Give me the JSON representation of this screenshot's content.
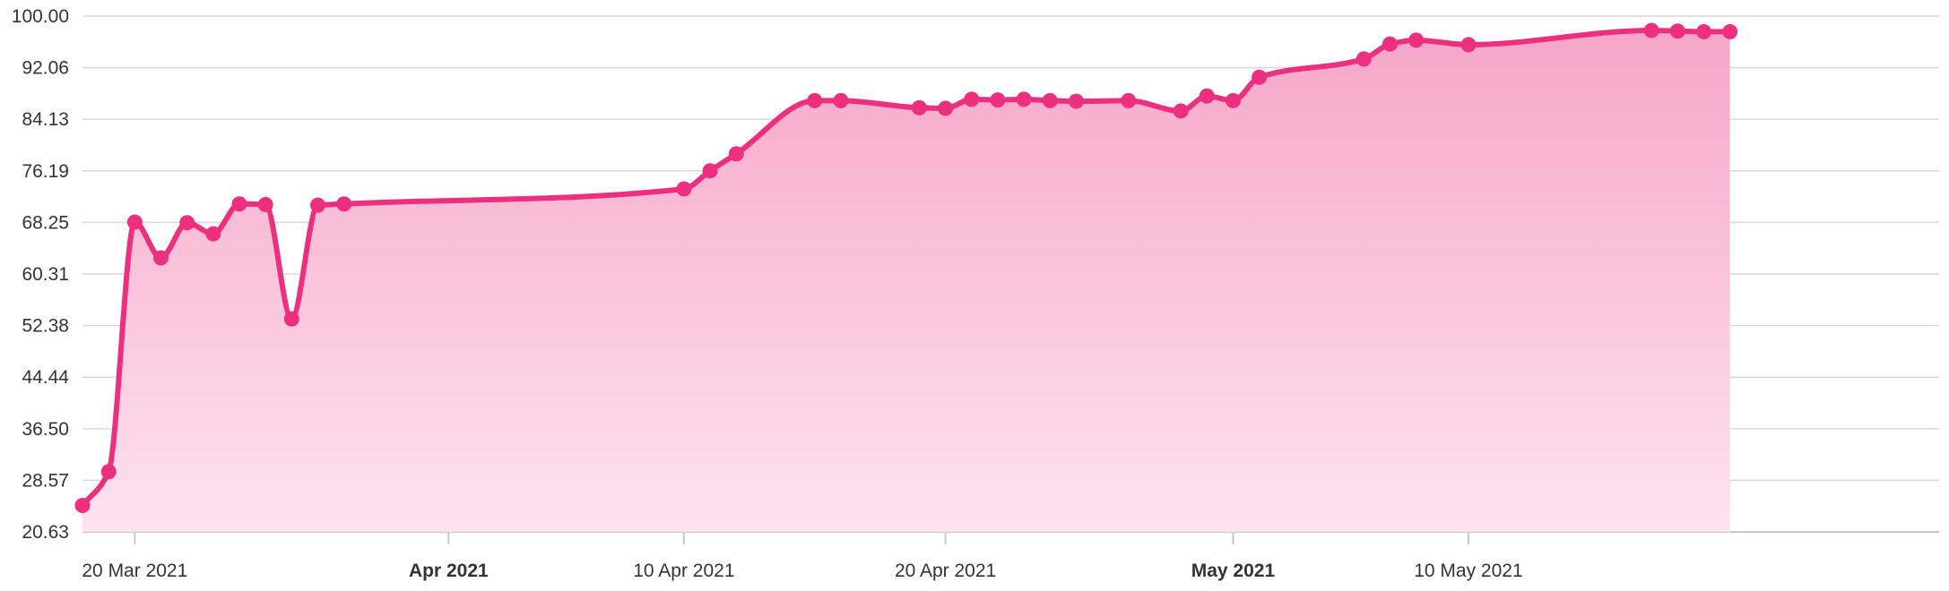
{
  "chart_data": {
    "type": "area",
    "title": "",
    "xlabel": "",
    "ylabel": "",
    "colors": {
      "line": "#ec2f7f",
      "area_top": "#f6a6c8",
      "area_bottom": "#fde3ee",
      "grid": "#d9d9d9"
    },
    "grid": true,
    "legend": "none",
    "ylim": [
      20.63,
      100.0
    ],
    "xlim": [
      "2021-03-18",
      "2021-05-28"
    ],
    "yticks": [
      "100.00",
      "92.06",
      "84.13",
      "76.19",
      "68.25",
      "60.31",
      "52.38",
      "44.44",
      "36.50",
      "28.57",
      "20.63"
    ],
    "xticks": [
      {
        "date": "2021-03-20",
        "label": "20 Mar 2021",
        "bold": false
      },
      {
        "date": "2021-04-01",
        "label": "Apr 2021",
        "bold": true
      },
      {
        "date": "2021-04-10",
        "label": "10 Apr 2021",
        "bold": false
      },
      {
        "date": "2021-04-20",
        "label": "20 Apr 2021",
        "bold": false
      },
      {
        "date": "2021-05-01",
        "label": "May 2021",
        "bold": true
      },
      {
        "date": "2021-05-10",
        "label": "10 May 2021",
        "bold": false
      }
    ],
    "series": [
      {
        "points": [
          [
            "2021-03-18",
            24.7
          ],
          [
            "2021-03-19",
            29.9
          ],
          [
            "2021-03-20",
            68.3
          ],
          [
            "2021-03-21",
            62.8
          ],
          [
            "2021-03-22",
            68.2
          ],
          [
            "2021-03-23",
            66.5
          ],
          [
            "2021-03-24",
            71.1
          ],
          [
            "2021-03-25",
            71.0
          ],
          [
            "2021-03-26",
            53.4
          ],
          [
            "2021-03-27",
            70.9
          ],
          [
            "2021-03-28",
            71.1
          ],
          [
            "2021-04-10",
            73.4
          ],
          [
            "2021-04-11",
            76.2
          ],
          [
            "2021-04-12",
            78.8
          ],
          [
            "2021-04-15",
            87.0
          ],
          [
            "2021-04-16",
            87.0
          ],
          [
            "2021-04-19",
            85.9
          ],
          [
            "2021-04-20",
            85.8
          ],
          [
            "2021-04-21",
            87.2
          ],
          [
            "2021-04-22",
            87.1
          ],
          [
            "2021-04-23",
            87.2
          ],
          [
            "2021-04-24",
            87.0
          ],
          [
            "2021-04-25",
            86.9
          ],
          [
            "2021-04-27",
            87.0
          ],
          [
            "2021-04-29",
            85.4
          ],
          [
            "2021-04-30",
            87.7
          ],
          [
            "2021-05-01",
            87.0
          ],
          [
            "2021-05-02",
            90.6
          ],
          [
            "2021-05-06",
            93.4
          ],
          [
            "2021-05-07",
            95.7
          ],
          [
            "2021-05-08",
            96.3
          ],
          [
            "2021-05-10",
            95.6
          ],
          [
            "2021-05-17",
            97.8
          ],
          [
            "2021-05-18",
            97.7
          ],
          [
            "2021-05-19",
            97.6
          ],
          [
            "2021-05-20",
            97.6
          ]
        ]
      }
    ]
  }
}
